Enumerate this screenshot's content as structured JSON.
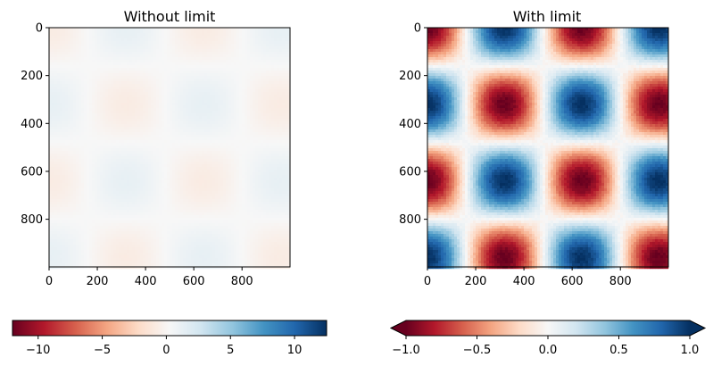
{
  "chart_data": [
    {
      "type": "heatmap",
      "title": "Without limit",
      "xlabel": "",
      "ylabel": "",
      "xlim": [
        0,
        999
      ],
      "ylim": [
        999,
        0
      ],
      "x_ticks": [
        0,
        200,
        400,
        600,
        800
      ],
      "y_ticks": [
        0,
        200,
        400,
        600,
        800
      ],
      "colormap": "RdBu",
      "norm": "unscaled: colorbar spans roughly -12 to 12, so the image appears faint (values near 0)",
      "pattern": {
        "z_range": [
          -1,
          1
        ],
        "cells_x": [
          "+",
          "-",
          "+",
          "-"
        ],
        "cells_y": [
          "+",
          "-",
          "+",
          "-"
        ],
        "period_px": 320,
        "noise": "low"
      },
      "colorbar": {
        "orientation": "horizontal",
        "range": [
          -12,
          12.5
        ],
        "ticks": [
          "−10",
          "−5",
          "0",
          "5",
          "10"
        ],
        "tick_values": [
          -10,
          -5,
          0,
          5,
          10
        ],
        "extend": "neither"
      }
    },
    {
      "type": "heatmap",
      "title": "With limit",
      "xlabel": "",
      "ylabel": "",
      "xlim": [
        0,
        999
      ],
      "ylim": [
        999,
        0
      ],
      "x_ticks": [
        0,
        200,
        400,
        600,
        800
      ],
      "y_ticks": [
        0,
        200,
        400,
        600,
        800
      ],
      "colormap": "RdBu",
      "norm": "clipped to [-1, 1]",
      "pattern": {
        "z_range": [
          -1,
          1
        ],
        "cells_x": [
          "+",
          "-",
          "+",
          "-"
        ],
        "cells_y": [
          "+",
          "-",
          "+",
          "-"
        ],
        "period_px": 320,
        "noise": "low"
      },
      "colorbar": {
        "orientation": "horizontal",
        "range": [
          -1,
          1
        ],
        "ticks": [
          "−1.0",
          "−0.5",
          "0.0",
          "0.5",
          "1.0"
        ],
        "tick_values": [
          -1,
          -0.5,
          0,
          0.5,
          1
        ],
        "extend": "both"
      }
    }
  ]
}
